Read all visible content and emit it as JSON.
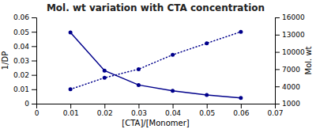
{
  "chart_data": {
    "type": "line",
    "title": "Mol. wt variation with CTA concentration",
    "x_label": "[CTA]/[Monomer]",
    "y_label": "1/DP",
    "y2_label": "Mol. wt",
    "x": [
      0.01,
      0.02,
      0.03,
      0.04,
      0.05,
      0.06
    ],
    "series": [
      {
        "color": "#00008B",
        "line_style": "solid",
        "marker": "circle",
        "values": [
          0.0495,
          0.023,
          0.013,
          0.009,
          0.006,
          0.004
        ]
      },
      {
        "color": "#00008B",
        "line_style": "dotted",
        "marker": "circle",
        "axis": "y2",
        "values": [
          3500,
          5500,
          7000,
          9500,
          11500,
          13500
        ]
      }
    ],
    "xlim": [
      0,
      0.07
    ],
    "ylim": [
      0,
      0.06
    ],
    "y2lim": [
      1000,
      16000
    ],
    "xticks": [
      0,
      0.01,
      0.02,
      0.03,
      0.04,
      0.05,
      0.06,
      0.07
    ],
    "yticks": [
      0,
      0.01,
      0.02,
      0.03,
      0.04,
      0.05,
      0.06
    ],
    "y2ticks": [
      1000,
      4000,
      7000,
      10000,
      13000,
      16000
    ]
  }
}
